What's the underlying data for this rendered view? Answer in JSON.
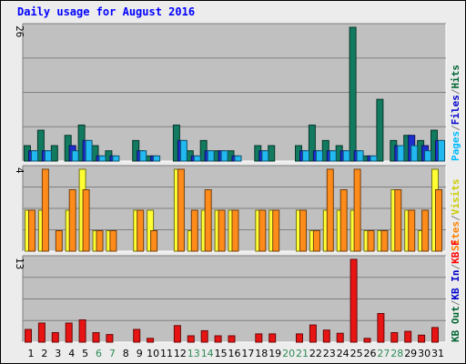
{
  "chart_data": {
    "title": "Daily usage for August 2016",
    "type": "bar",
    "days": [
      "1",
      "2",
      "3",
      "4",
      "5",
      "6",
      "7",
      "8",
      "9",
      "10",
      "11",
      "12",
      "13",
      "14",
      "15",
      "16",
      "17",
      "18",
      "19",
      "20",
      "21",
      "22",
      "23",
      "24",
      "25",
      "26",
      "27",
      "28",
      "29",
      "30",
      "31"
    ],
    "weekend_days": [
      "6",
      "7",
      "13",
      "14",
      "20",
      "21",
      "27",
      "28"
    ],
    "panels": [
      {
        "id": "hits-files-pages",
        "max_label": "26",
        "ymax": 26,
        "legend": [
          {
            "text": "Hits",
            "color": "#006633"
          },
          {
            "text": "/",
            "color": "#808080"
          },
          {
            "text": "Files",
            "color": "#0000cc"
          },
          {
            "text": "/",
            "color": "#808080"
          },
          {
            "text": "Pages",
            "color": "#00bbff"
          }
        ],
        "series": [
          {
            "name": "Hits",
            "color": "#117a5f",
            "values": [
              3,
              6,
              3,
              5,
              7,
              3,
              2,
              0,
              4,
              1,
              0,
              7,
              2,
              4,
              2,
              2,
              0,
              3,
              3,
              0,
              3,
              7,
              4,
              3,
              26,
              1,
              12,
              4,
              5,
              4,
              6
            ]
          },
          {
            "name": "Files",
            "color": "#1c2ed0",
            "values": [
              2,
              2,
              0,
              3,
              4,
              1,
              1,
              0,
              2,
              1,
              0,
              4,
              1,
              2,
              2,
              1,
              0,
              2,
              0,
              0,
              2,
              2,
              2,
              2,
              2,
              1,
              0,
              3,
              5,
              3,
              4
            ]
          },
          {
            "name": "Pages",
            "color": "#22b8f0",
            "values": [
              2,
              2,
              0,
              2,
              4,
              1,
              1,
              0,
              2,
              1,
              0,
              4,
              1,
              2,
              2,
              1,
              0,
              2,
              0,
              0,
              2,
              2,
              2,
              2,
              2,
              1,
              0,
              3,
              3,
              2,
              4
            ]
          }
        ]
      },
      {
        "id": "visits-sites",
        "max_label": "4",
        "ymax": 4,
        "legend": [
          {
            "text": "Visits",
            "color": "#cccc00"
          },
          {
            "text": "/",
            "color": "#808080"
          },
          {
            "text": "Sites",
            "color": "#ff8000"
          }
        ],
        "series": [
          {
            "name": "Visits",
            "color": "#ffff33",
            "values": [
              2,
              2,
              0,
              2,
              4,
              1,
              1,
              0,
              2,
              2,
              0,
              4,
              1,
              2,
              2,
              2,
              0,
              2,
              2,
              0,
              2,
              1,
              2,
              2,
              2,
              1,
              1,
              3,
              2,
              1,
              4
            ]
          },
          {
            "name": "Sites",
            "color": "#ff8c1a",
            "values": [
              2,
              4,
              1,
              3,
              3,
              1,
              1,
              0,
              2,
              1,
              0,
              4,
              2,
              3,
              2,
              2,
              0,
              2,
              2,
              0,
              2,
              1,
              4,
              3,
              4,
              1,
              1,
              3,
              2,
              2,
              3
            ]
          }
        ]
      },
      {
        "id": "kb",
        "max_label": "13",
        "ymax": 13,
        "legend": [
          {
            "text": "KB F",
            "color": "#ff0000"
          },
          {
            "text": "/",
            "color": "#808080"
          },
          {
            "text": "KB In",
            "color": "#0000cc"
          },
          {
            "text": "/",
            "color": "#808080"
          },
          {
            "text": "KB Out",
            "color": "#006633"
          }
        ],
        "series": [
          {
            "name": "KB F",
            "color": "#e81414",
            "values": [
              2,
              3,
              1.5,
              3,
              3.5,
              1.5,
              1.2,
              0,
              2,
              0.6,
              0,
              2.6,
              1,
              1.8,
              1,
              1,
              0,
              1.3,
              1.3,
              0,
              1.3,
              2.7,
              1.9,
              1.4,
              13,
              0.6,
              4.5,
              1.5,
              1.7,
              1.1,
              2.3
            ]
          }
        ]
      }
    ]
  }
}
